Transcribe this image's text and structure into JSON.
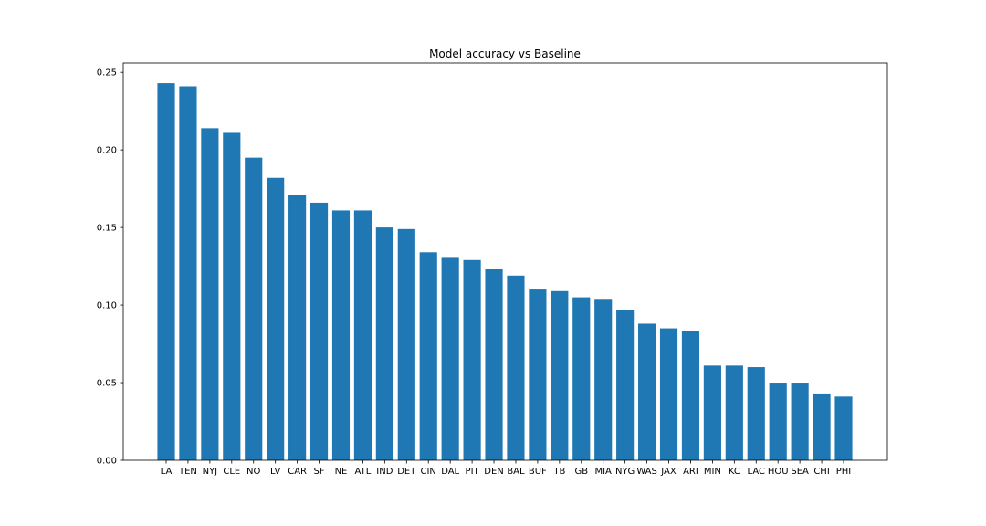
{
  "chart_data": {
    "type": "bar",
    "title": "Model accuracy vs Baseline",
    "xlabel": "",
    "ylabel": "",
    "categories": [
      "LA",
      "TEN",
      "NYJ",
      "CLE",
      "NO",
      "LV",
      "CAR",
      "SF",
      "NE",
      "ATL",
      "IND",
      "DET",
      "CIN",
      "DAL",
      "PIT",
      "DEN",
      "BAL",
      "BUF",
      "TB",
      "GB",
      "MIA",
      "NYG",
      "WAS",
      "JAX",
      "ARI",
      "MIN",
      "KC",
      "LAC",
      "HOU",
      "SEA",
      "CHI",
      "PHI"
    ],
    "values": [
      0.243,
      0.241,
      0.214,
      0.211,
      0.195,
      0.182,
      0.171,
      0.166,
      0.161,
      0.161,
      0.15,
      0.149,
      0.134,
      0.131,
      0.129,
      0.123,
      0.119,
      0.11,
      0.109,
      0.105,
      0.104,
      0.097,
      0.088,
      0.085,
      0.083,
      0.061,
      0.061,
      0.06,
      0.05,
      0.05,
      0.043,
      0.041
    ],
    "ylim": [
      0,
      0.256
    ],
    "yticks": [
      "0.00",
      "0.05",
      "0.10",
      "0.15",
      "0.20",
      "0.25"
    ],
    "bar_color": "#1f77b4",
    "grid": false
  }
}
